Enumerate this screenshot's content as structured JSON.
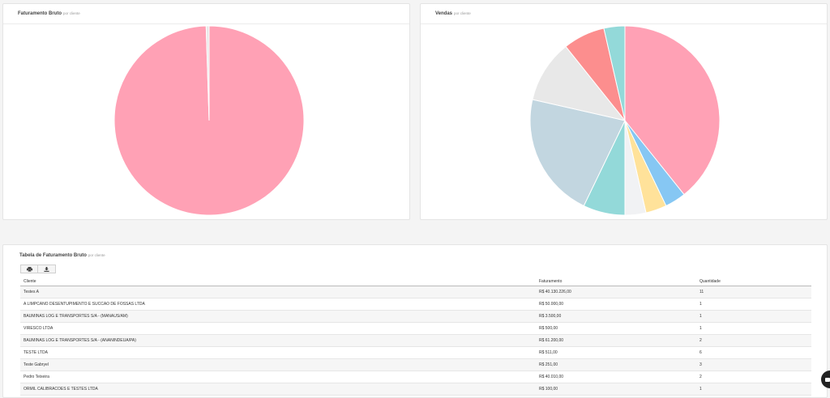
{
  "faturamento_panel": {
    "title": "Faturamento Bruto",
    "subtitle": "por cliente"
  },
  "vendas_panel": {
    "title": "Vendas",
    "subtitle": "por cliente"
  },
  "tabela_panel": {
    "title": "Tabela de Faturamento Bruto",
    "subtitle": "por cliente",
    "print_icon": "printer-icon",
    "download_icon": "download-icon",
    "columns": [
      "Cliente",
      "Faturamento",
      "Quantidade"
    ],
    "rows": [
      [
        "Testes A",
        "R$ 40.130.226,00",
        "11"
      ],
      [
        "A LIMPCANO DESENTUPIMENTO E SUCCAO DE FOSSAS LTDA",
        "R$ 50.000,00",
        "1"
      ],
      [
        "BAUMINAS LOG E TRANSPORTES S/A - (MANAUS/AM)",
        "R$ 3.500,00",
        "1"
      ],
      [
        "VIRESCO LTDA",
        "R$ 500,00",
        "1"
      ],
      [
        "BAUMINAS LOG E TRANSPORTES S/A - (ANANINDEUA/PA)",
        "R$ 61.200,00",
        "2"
      ],
      [
        "TESTE LTDA",
        "R$ 511,00",
        "6"
      ],
      [
        "Teste Gabryel",
        "R$ 251,00",
        "3"
      ],
      [
        "Pedro Teixeira",
        "R$ 40.010,00",
        "2"
      ],
      [
        "ORMIL CALIBRACOES E TESTES LTDA",
        "R$ 100,00",
        "1"
      ]
    ]
  },
  "chat_icon": "chat-icon",
  "chart_data": [
    {
      "type": "pie",
      "title": "Faturamento Bruto",
      "subtitle": "por cliente",
      "values": [
        99.5,
        0.5
      ],
      "colors": [
        "#ffa1b5",
        "#e8e8e8"
      ]
    },
    {
      "type": "pie",
      "title": "Vendas",
      "subtitle": "por cliente",
      "values": [
        11,
        1,
        1,
        1,
        2,
        6,
        3,
        2,
        1
      ],
      "colors": [
        "#ffa1b5",
        "#86c7f3",
        "#ffe29a",
        "#f1f2f4",
        "#93d9d9",
        "#c2d6e0",
        "#e8e8e8",
        "#fc8e8e",
        "#93d9d9"
      ]
    }
  ]
}
